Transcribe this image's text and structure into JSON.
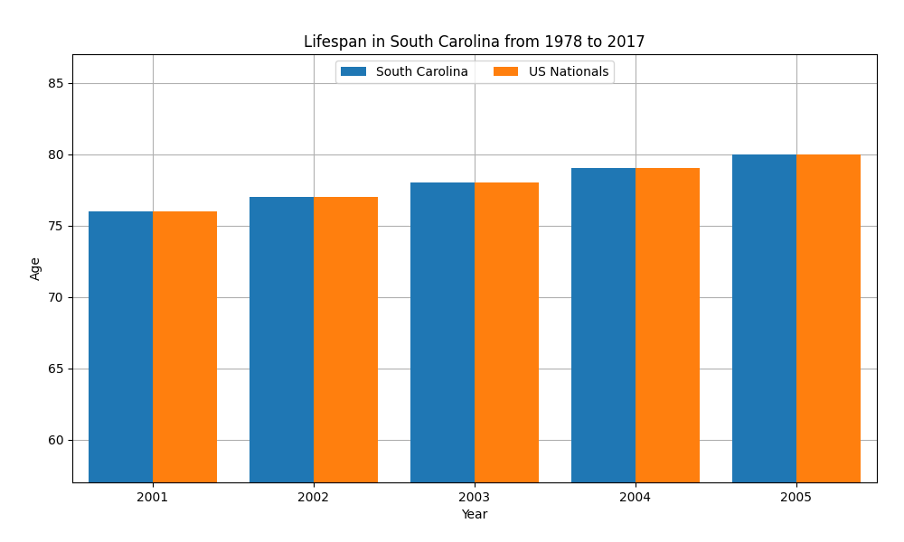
{
  "chart_data": {
    "type": "bar",
    "title": "Lifespan in South Carolina from 1978 to 2017",
    "x_label": "Year",
    "y_label": "Age",
    "categories": [
      "2001",
      "2002",
      "2003",
      "2004",
      "2005"
    ],
    "series": [
      {
        "name": "South Carolina",
        "values": [
          76,
          77,
          78,
          79,
          80
        ]
      },
      {
        "name": "US Nationals",
        "values": [
          76,
          77,
          78,
          79,
          80
        ]
      }
    ],
    "ylim": [
      57,
      87
    ],
    "yticks": [
      60,
      65,
      70,
      75,
      80,
      85
    ],
    "grid": true,
    "legend": "upper center"
  }
}
